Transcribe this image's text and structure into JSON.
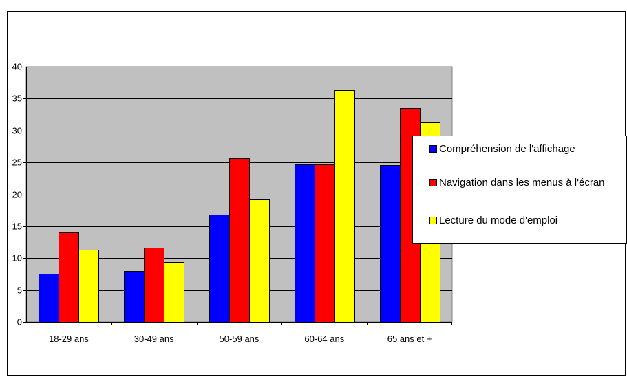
{
  "chart_data": {
    "type": "bar",
    "categories": [
      "18-29 ans",
      "30-49 ans",
      "50-59 ans",
      "60-64 ans",
      "65 ans et +"
    ],
    "series": [
      {
        "name": "Compréhension de l'affichage",
        "color": "#0000ff",
        "values": [
          7.5,
          8.0,
          16.8,
          24.7,
          24.6
        ]
      },
      {
        "name": "Navigation dans les menus à l'écran",
        "color": "#ff0000",
        "values": [
          14.1,
          11.6,
          25.7,
          24.7,
          33.5
        ]
      },
      {
        "name": "Lecture du mode d'emploi",
        "color": "#ffff00",
        "values": [
          11.3,
          9.4,
          19.3,
          36.3,
          31.3
        ]
      }
    ],
    "ylim": [
      0,
      40
    ],
    "yticks": [
      "0",
      "5",
      "10",
      "15",
      "20",
      "25",
      "30",
      "35",
      "40"
    ],
    "title": "",
    "xlabel": "",
    "ylabel": "",
    "grid": true,
    "legend_position": "right",
    "plot_background": "#c0c0c0"
  }
}
